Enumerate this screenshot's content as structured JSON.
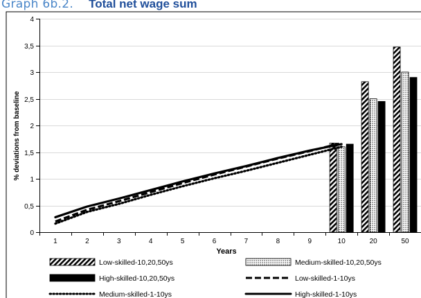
{
  "figure": {
    "caption_label": "Graph 6b.2.",
    "caption_title": "Total net wage sum"
  },
  "colors": {
    "low": "#000000",
    "medium": "#000000",
    "high": "#000000",
    "grid": "#d9d9d9",
    "axis": "#000000"
  },
  "chart_data": {
    "type": "bar",
    "title": "",
    "xlabel": "Years",
    "ylabel": "% deviations from baseline",
    "ylim": [
      0,
      4
    ],
    "ytick_labels": [
      "0",
      "0,5",
      "1",
      "1,5",
      "2",
      "2,5",
      "3",
      "3,5",
      "4"
    ],
    "categories": [
      "1",
      "2",
      "3",
      "4",
      "5",
      "6",
      "7",
      "8",
      "9",
      "10",
      "20",
      "50"
    ],
    "grid": "horizontal",
    "legend_position": "bottom",
    "bar_series": [
      {
        "name": "Low-skilled-10,20,50ys",
        "pattern": "diagonal-stripes",
        "x": [
          "10",
          "20",
          "50"
        ],
        "values": [
          1.67,
          2.82,
          3.47
        ]
      },
      {
        "name": "Medium-skilled-10,20,50ys",
        "pattern": "dots",
        "x": [
          "10",
          "20",
          "50"
        ],
        "values": [
          1.6,
          2.5,
          3.0
        ]
      },
      {
        "name": "High-skilled-10,20,50ys",
        "pattern": "solid",
        "x": [
          "10",
          "20",
          "50"
        ],
        "values": [
          1.65,
          2.45,
          2.9
        ]
      }
    ],
    "line_series": [
      {
        "name": "Low-skilled-1-10ys",
        "style": "dashed",
        "x": [
          "1",
          "2",
          "3",
          "4",
          "5",
          "6",
          "7",
          "8",
          "9",
          "10"
        ],
        "values": [
          0.2,
          0.42,
          0.58,
          0.75,
          0.92,
          1.08,
          1.23,
          1.38,
          1.52,
          1.67
        ]
      },
      {
        "name": "Medium-skilled-1-10ys",
        "style": "dotted",
        "x": [
          "1",
          "2",
          "3",
          "4",
          "5",
          "6",
          "7",
          "8",
          "9",
          "10"
        ],
        "values": [
          0.16,
          0.38,
          0.53,
          0.7,
          0.86,
          1.01,
          1.15,
          1.3,
          1.45,
          1.6
        ]
      },
      {
        "name": "High-skilled-1-10ys",
        "style": "solid",
        "x": [
          "1",
          "2",
          "3",
          "4",
          "5",
          "6",
          "7",
          "8",
          "9",
          "10"
        ],
        "values": [
          0.28,
          0.48,
          0.63,
          0.79,
          0.95,
          1.1,
          1.24,
          1.39,
          1.53,
          1.65
        ]
      }
    ],
    "legend": [
      "Low-skilled-10,20,50ys",
      "Medium-skilled-10,20,50ys",
      "High-skilled-10,20,50ys",
      "Low-skilled-1-10ys",
      "Medium-skilled-1-10ys",
      "High-skilled-1-10ys"
    ]
  }
}
